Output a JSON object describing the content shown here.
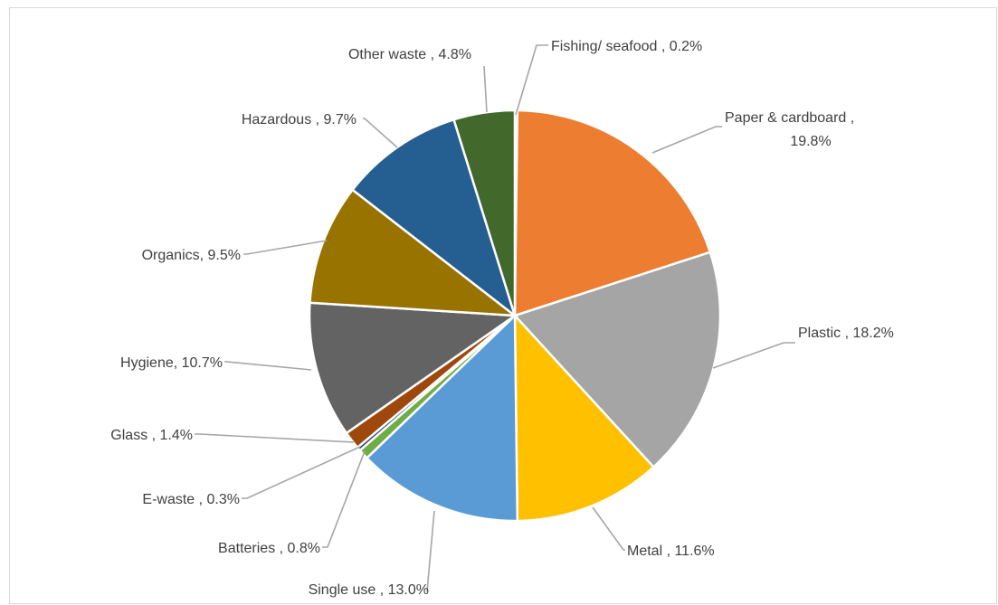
{
  "chart_data": {
    "type": "pie",
    "title": "",
    "legend": "none",
    "slices": [
      {
        "category": "Fishing/ seafood",
        "value": 0.2,
        "lines": [
          "Fishing/ seafood , 0.2%"
        ],
        "color": "#43682B"
      },
      {
        "category": "Paper & cardboard",
        "value": 19.8,
        "lines": [
          "Paper & cardboard ,",
          "19.8%"
        ],
        "color": "#ED7D31"
      },
      {
        "category": "Plastic",
        "value": 18.2,
        "lines": [
          "Plastic , 18.2%"
        ],
        "color": "#A5A5A5"
      },
      {
        "category": "Metal",
        "value": 11.6,
        "lines": [
          "Metal , 11.6%"
        ],
        "color": "#FFC000"
      },
      {
        "category": "Single use",
        "value": 13.0,
        "lines": [
          "Single use , 13.0%"
        ],
        "color": "#5B9BD5"
      },
      {
        "category": "Batteries",
        "value": 0.8,
        "lines": [
          "Batteries , 0.8%"
        ],
        "color": "#70AD47"
      },
      {
        "category": "E-waste",
        "value": 0.3,
        "lines": [
          "E-waste , 0.3%"
        ],
        "color": "#264478"
      },
      {
        "category": "Glass",
        "value": 1.4,
        "lines": [
          "Glass , 1.4%"
        ],
        "color": "#9E480E"
      },
      {
        "category": "Hygiene",
        "value": 10.7,
        "lines": [
          "Hygiene, 10.7%"
        ],
        "color": "#636363"
      },
      {
        "category": "Organics",
        "value": 9.5,
        "lines": [
          "Organics, 9.5%"
        ],
        "color": "#997300"
      },
      {
        "category": "Hazardous",
        "value": 9.7,
        "lines": [
          "Hazardous , 9.7%"
        ],
        "color": "#255E91"
      },
      {
        "category": "Other waste",
        "value": 4.8,
        "lines": [
          "Other waste , 4.8%"
        ],
        "color": "#43682B"
      }
    ]
  }
}
